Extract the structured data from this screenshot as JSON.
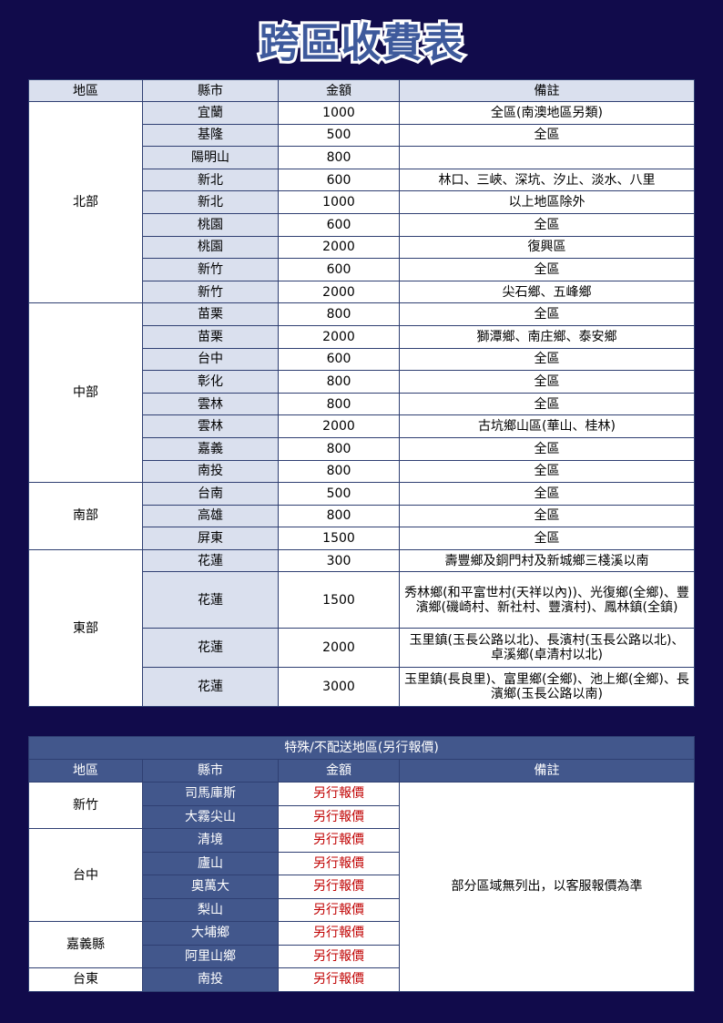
{
  "title": "跨區收費表",
  "table1": {
    "headers": [
      "地區",
      "縣市",
      "金額",
      "備註"
    ],
    "groups": [
      {
        "region": "北部",
        "rows": [
          [
            "宜蘭",
            "1000",
            "全區(南澳地區另類)"
          ],
          [
            "基隆",
            "500",
            "全區"
          ],
          [
            "陽明山",
            "800",
            ""
          ],
          [
            "新北",
            "600",
            "林口、三峽、深坑、汐止、淡水、八里"
          ],
          [
            "新北",
            "1000",
            "以上地區除外"
          ],
          [
            "桃園",
            "600",
            "全區"
          ],
          [
            "桃園",
            "2000",
            "復興區"
          ],
          [
            "新竹",
            "600",
            "全區"
          ],
          [
            "新竹",
            "2000",
            "尖石鄉、五峰鄉"
          ]
        ]
      },
      {
        "region": "中部",
        "rows": [
          [
            "苗栗",
            "800",
            "全區"
          ],
          [
            "苗栗",
            "2000",
            "獅潭鄉、南庄鄉、泰安鄉"
          ],
          [
            "台中",
            "600",
            "全區"
          ],
          [
            "彰化",
            "800",
            "全區"
          ],
          [
            "雲林",
            "800",
            "全區"
          ],
          [
            "雲林",
            "2000",
            "古坑鄉山區(華山、桂林)"
          ],
          [
            "嘉義",
            "800",
            "全區"
          ],
          [
            "南投",
            "800",
            "全區"
          ]
        ]
      },
      {
        "region": "南部",
        "rows": [
          [
            "台南",
            "500",
            "全區"
          ],
          [
            "高雄",
            "800",
            "全區"
          ],
          [
            "屏東",
            "1500",
            "全區"
          ]
        ]
      },
      {
        "region": "東部",
        "rows": [
          [
            "花蓮",
            "300",
            "壽豐鄉及銅門村及新城鄉三棧溪以南"
          ],
          [
            "花蓮",
            "1500",
            "秀林鄉(和平富世村(天祥以內))、光復鄉(全鄉)、豐濱鄉(磯崎村、新社村、豐濱村)、鳳林鎮(全鎮)"
          ],
          [
            "花蓮",
            "2000",
            "玉里鎮(玉長公路以北)、長濱村(玉長公路以北)、卓溪鄉(卓清村以北)"
          ],
          [
            "花蓮",
            "3000",
            "玉里鎮(長良里)、富里鄉(全鄉)、池上鄉(全鄉)、長濱鄉(玉長公路以南)"
          ]
        ]
      }
    ]
  },
  "table2": {
    "caption": "特殊/不配送地區(另行報價)",
    "headers": [
      "地區",
      "縣市",
      "金額",
      "備註"
    ],
    "note": "部分區域無列出，以客服報價為準",
    "groups": [
      {
        "region": "新竹",
        "rows": [
          [
            "司馬庫斯",
            "另行報價"
          ],
          [
            "大霧尖山",
            "另行報價"
          ]
        ]
      },
      {
        "region": "台中",
        "rows": [
          [
            "清境",
            "另行報價"
          ],
          [
            "廬山",
            "另行報價"
          ],
          [
            "奧萬大",
            "另行報價"
          ],
          [
            "梨山",
            "另行報價"
          ]
        ]
      },
      {
        "region": "嘉義縣",
        "rows": [
          [
            "大埔鄉",
            "另行報價"
          ],
          [
            "阿里山鄉",
            "另行報價"
          ]
        ]
      },
      {
        "region": "台東",
        "rows": [
          [
            "南投",
            "另行報價"
          ]
        ]
      }
    ]
  }
}
